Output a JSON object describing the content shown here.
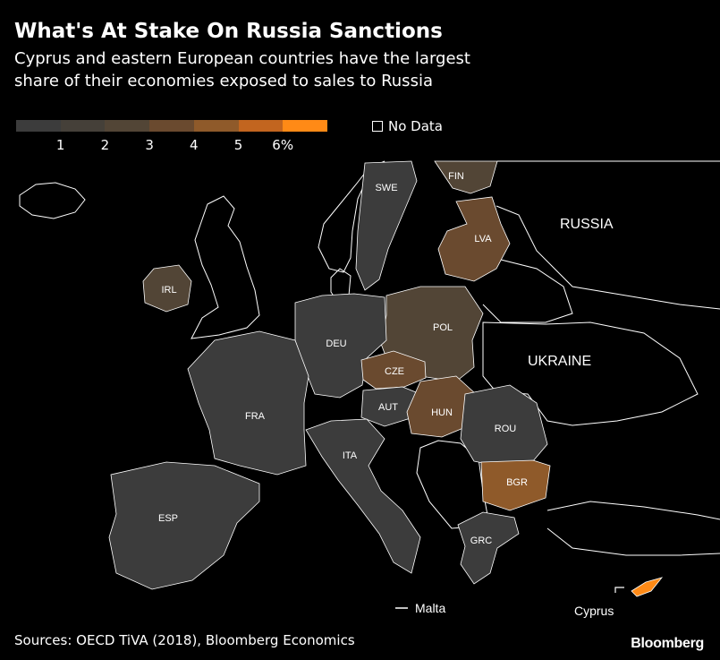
{
  "title": "What's At Stake On Russia Sanctions",
  "subtitle": "Cyprus and eastern European countries have the largest share of their economies exposed to sales to Russia",
  "legend": {
    "colors": [
      "#3c3c3c",
      "#454039",
      "#524536",
      "#6a4a2f",
      "#8f5a2a",
      "#c2651f",
      "#ff8a16"
    ],
    "ticks": [
      "1",
      "2",
      "3",
      "4",
      "5",
      "6%"
    ],
    "no_data_label": "No Data"
  },
  "map": {
    "countries": [
      {
        "code": "FIN",
        "label": "FIN",
        "fill": "#524536"
      },
      {
        "code": "SWE",
        "label": "SWE",
        "fill": "#3c3c3c"
      },
      {
        "code": "LVA",
        "label": "LVA",
        "fill": "#6a4a2f"
      },
      {
        "code": "IRL",
        "label": "IRL",
        "fill": "#524536"
      },
      {
        "code": "POL",
        "label": "POL",
        "fill": "#524536"
      },
      {
        "code": "DEU",
        "label": "DEU",
        "fill": "#3c3c3c"
      },
      {
        "code": "CZE",
        "label": "CZE",
        "fill": "#6a4a2f"
      },
      {
        "code": "AUT",
        "label": "AUT",
        "fill": "#3c3c3c"
      },
      {
        "code": "HUN",
        "label": "HUN",
        "fill": "#6a4a2f"
      },
      {
        "code": "ROU",
        "label": "ROU",
        "fill": "#3c3c3c"
      },
      {
        "code": "FRA",
        "label": "FRA",
        "fill": "#3c3c3c"
      },
      {
        "code": "ITA",
        "label": "ITA",
        "fill": "#3c3c3c"
      },
      {
        "code": "BGR",
        "label": "BGR",
        "fill": "#8f5a2a"
      },
      {
        "code": "ESP",
        "label": "ESP",
        "fill": "#3c3c3c"
      },
      {
        "code": "GRC",
        "label": "GRC",
        "fill": "#3c3c3c"
      },
      {
        "code": "CYP",
        "label": "Cyprus",
        "fill": "#ff8a16"
      }
    ],
    "other_labels": {
      "russia": "RUSSIA",
      "ukraine": "UKRAINE",
      "malta": "Malta"
    }
  },
  "source": "Sources: OECD TiVA (2018), Bloomberg Economics",
  "brand": "Bloomberg"
}
